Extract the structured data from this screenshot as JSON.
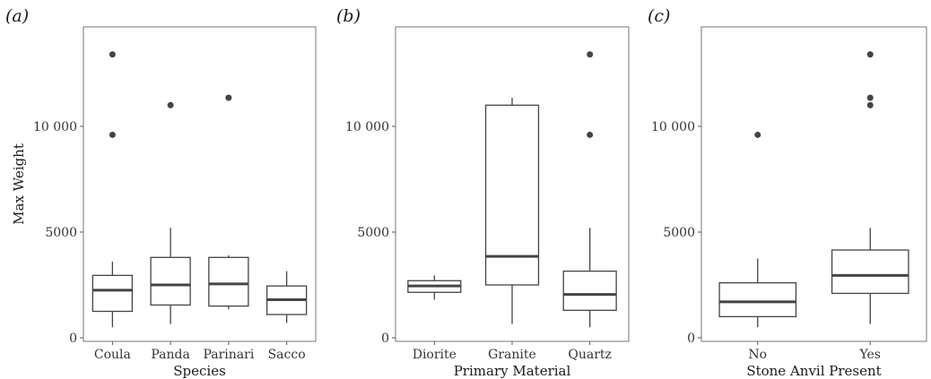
{
  "chart_data": [
    {
      "type": "box",
      "panel_label": "(a)",
      "xlabel": "Species",
      "ylabel": "Max Weight",
      "ylim": [
        0,
        14000
      ],
      "yticks": [
        0,
        5000,
        10000
      ],
      "ytick_labels": [
        "0",
        "5000",
        "10 000"
      ],
      "categories": [
        "Coula",
        "Panda",
        "Parinari",
        "Sacco"
      ],
      "boxes": [
        {
          "whisker_low": 500,
          "q1": 1250,
          "median": 2250,
          "q3": 2950,
          "whisker_high": 3600,
          "outliers": [
            9600,
            13400
          ]
        },
        {
          "whisker_low": 650,
          "q1": 1550,
          "median": 2500,
          "q3": 3800,
          "whisker_high": 5200,
          "outliers": [
            11000
          ]
        },
        {
          "whisker_low": 1350,
          "q1": 1500,
          "median": 2550,
          "q3": 3800,
          "whisker_high": 3900,
          "outliers": [
            11350
          ]
        },
        {
          "whisker_low": 700,
          "q1": 1100,
          "median": 1800,
          "q3": 2450,
          "whisker_high": 3150,
          "outliers": []
        }
      ]
    },
    {
      "type": "box",
      "panel_label": "(b)",
      "xlabel": "Primary Material",
      "ylabel": "",
      "ylim": [
        0,
        14000
      ],
      "yticks": [
        0,
        5000,
        10000
      ],
      "ytick_labels": [
        "0",
        "5000",
        "10 000"
      ],
      "categories": [
        "Diorite",
        "Granite",
        "Quartz"
      ],
      "boxes": [
        {
          "whisker_low": 1800,
          "q1": 2150,
          "median": 2450,
          "q3": 2700,
          "whisker_high": 2950,
          "outliers": []
        },
        {
          "whisker_low": 650,
          "q1": 2500,
          "median": 3850,
          "q3": 11000,
          "whisker_high": 11350,
          "outliers": []
        },
        {
          "whisker_low": 500,
          "q1": 1300,
          "median": 2050,
          "q3": 3150,
          "whisker_high": 5200,
          "outliers": [
            9600,
            13400
          ]
        }
      ]
    },
    {
      "type": "box",
      "panel_label": "(c)",
      "xlabel": "Stone Anvil Present",
      "ylabel": "",
      "ylim": [
        0,
        14000
      ],
      "yticks": [
        0,
        5000,
        10000
      ],
      "ytick_labels": [
        "0",
        "5000",
        "10 000"
      ],
      "categories": [
        "No",
        "Yes"
      ],
      "boxes": [
        {
          "whisker_low": 500,
          "q1": 1000,
          "median": 1700,
          "q3": 2600,
          "whisker_high": 3750,
          "outliers": [
            9600
          ]
        },
        {
          "whisker_low": 650,
          "q1": 2100,
          "median": 2950,
          "q3": 4150,
          "whisker_high": 5200,
          "outliers": [
            11000,
            11350,
            13400
          ]
        }
      ]
    }
  ]
}
